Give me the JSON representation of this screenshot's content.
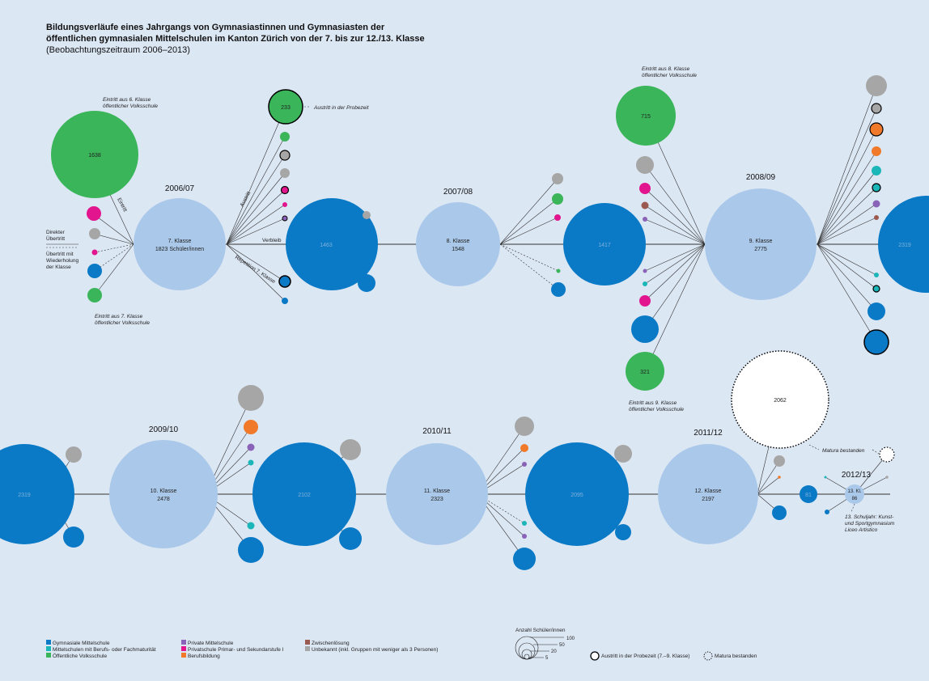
{
  "title": {
    "line1": "Bildungsverläufe eines Jahrgangs von Gymnasiastinnen und Gymnasiasten der",
    "line2": "öffentlichen gymnasialen Mittelschulen im Kanton Zürich von der 7. bis zur 12./13. Klasse",
    "subtitle": "(Beobachtungszeitraum 2006–2013)"
  },
  "colors": {
    "background": "#dce7f4",
    "gymnasium": "#0a7ac6",
    "class": "#aac8e9",
    "berufs_fachmaturitaet": "#1bb7b8",
    "oeffentliche_volksschule": "#3ab55a",
    "private_mittelschule": "#8a63b8",
    "privatschule": "#e2158f",
    "berufsbildung": "#f07a2a",
    "zwischenloesung": "#9b5a50",
    "unbekannt": "#a6a6a6"
  },
  "years": [
    "2006/07",
    "2007/08",
    "2008/09",
    "2009/10",
    "2010/11",
    "2011/12",
    "2012/13"
  ],
  "classes": [
    {
      "label": "7. Klasse",
      "value": "1823 Schüler/innen"
    },
    {
      "label": "8. Klasse",
      "value": "1548"
    },
    {
      "label": "9. Klasse",
      "value": "2775"
    },
    {
      "label": "10. Klasse",
      "value": "2478"
    },
    {
      "label": "11. Klasse",
      "value": "2323"
    },
    {
      "label": "12. Klasse",
      "value": "2197"
    },
    {
      "label": "13. Kl.",
      "value": "86"
    }
  ],
  "verbleib": [
    "1463",
    "1417",
    "2319",
    "2319",
    "2102",
    "2095",
    "81"
  ],
  "entries": {
    "e1638": "1638",
    "e233": "233",
    "e715": "715",
    "e321": "321",
    "e2062": "2062"
  },
  "annotations": {
    "eintritt6": [
      "Eintritt aus 6. Klasse",
      "öffentlicher Volksschule"
    ],
    "eintritt7": [
      "Eintritt aus 7. Klasse",
      "öffentlicher Volksschule"
    ],
    "eintritt8": [
      "Eintritt aus 8. Klasse",
      "öffentlicher Volksschule"
    ],
    "eintritt9": [
      "Eintritt aus 9. Klasse",
      "öffentlicher Volksschule"
    ],
    "direkter": [
      "Direkter",
      "Übertritt"
    ],
    "wiederholung": [
      "Übertritt mit",
      "Wiederholung",
      "der Klasse"
    ],
    "austritt_probezeit": "Austritt in der Probezeit",
    "eintritt": "Eintritt",
    "austritt": "Austritt",
    "verbleib": "Verbleib",
    "repetition": "Repetition 7. Klasse",
    "matura": "Matura bestanden",
    "schuljahr13": [
      "13. Schuljahr: Kunst-",
      "und Sportgymnasium",
      "Liceo Artistico"
    ]
  },
  "legend": {
    "col1": [
      "Gymnasiale Mittelschule",
      "Mittelschulen mit Berufs- oder Fachmaturität",
      "Öffentliche Volksschule"
    ],
    "col2": [
      "Private Mittelschule",
      "Privatschule Primar- und Sekundarstufe I",
      "Berufsbildung"
    ],
    "col3": [
      "Zwischenlösung",
      "Unbekannt (inkl. Gruppen mit weniger als 3 Personen)"
    ],
    "size_title": "Anzahl Schüler/innen",
    "size_values": [
      "100",
      "50",
      "20",
      "5"
    ],
    "probezeit": "Austritt in der Probezeit (7.–9. Klasse)",
    "matura": "Matura bestanden"
  }
}
